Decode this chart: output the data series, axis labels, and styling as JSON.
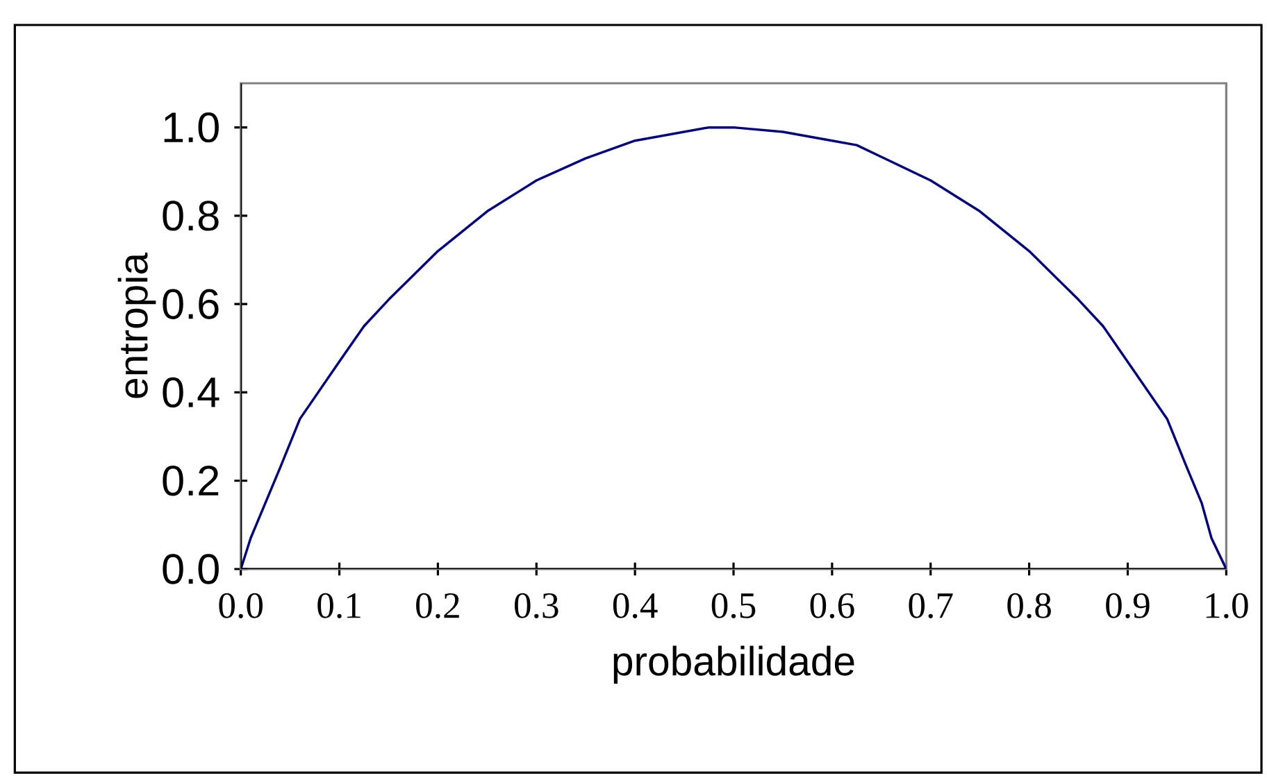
{
  "chart_data": {
    "type": "line",
    "xlabel": "probabilidade",
    "ylabel": "entropia",
    "xlim": [
      0,
      1
    ],
    "ylim": [
      0,
      1.1
    ],
    "xticks": [
      {
        "value": 0,
        "label": "0.0"
      },
      0.1,
      0.2,
      0.3,
      0.4,
      0.5,
      0.6,
      0.7,
      0.8,
      0.9,
      {
        "value": 1,
        "label": "1.0"
      }
    ],
    "yticks": [
      {
        "value": 0,
        "label": "0.0"
      },
      0.2,
      0.4,
      0.6,
      0.8,
      {
        "value": 1,
        "label": "1.0"
      }
    ],
    "grid": false,
    "marker": "none",
    "line_style": "solid",
    "series": [
      {
        "color": "#000080",
        "x": [
          0,
          0.01,
          0.04,
          0.06,
          0.1,
          0.125,
          0.15,
          0.2,
          0.25,
          0.3,
          0.35,
          0.375,
          0.4,
          0.475,
          0.5,
          0.55,
          0.6,
          0.625,
          0.7,
          0.75,
          0.8,
          0.85,
          0.875,
          0.94,
          0.96,
          0.975,
          0.985,
          1.0
        ],
        "values": [
          0,
          0.07,
          0.23,
          0.34,
          0.47,
          0.55,
          0.61,
          0.72,
          0.81,
          0.88,
          0.93,
          0.95,
          0.97,
          1.0,
          1.0,
          0.99,
          0.97,
          0.96,
          0.88,
          0.81,
          0.72,
          0.61,
          0.55,
          0.34,
          0.23,
          0.15,
          0.07,
          0
        ]
      }
    ]
  }
}
